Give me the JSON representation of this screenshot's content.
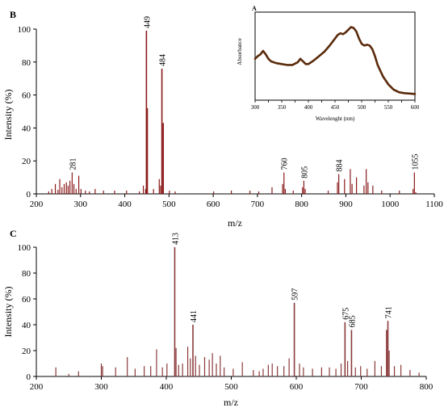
{
  "figure": {
    "background": "#ffffff"
  },
  "chart_data": [
    {
      "panel_label": "B",
      "type": "bar",
      "xlabel": "m/z",
      "ylabel": "Intensity (%)",
      "xlim": [
        200,
        1100
      ],
      "ylim": [
        0,
        100
      ],
      "x_ticks": [
        200,
        300,
        400,
        500,
        600,
        700,
        800,
        900,
        1000,
        1100
      ],
      "y_ticks": [
        0,
        20,
        40,
        60,
        80,
        100
      ],
      "color": "#8b1a1a",
      "x": [
        228,
        235,
        243,
        249,
        253,
        258,
        263,
        268,
        272,
        276,
        281,
        285,
        290,
        296,
        301,
        311,
        320,
        333,
        352,
        377,
        404,
        433,
        442,
        447,
        449,
        451,
        465,
        478,
        481,
        484,
        487,
        501,
        514,
        601,
        641,
        683,
        703,
        733,
        757,
        760,
        763,
        781,
        802,
        805,
        808,
        860,
        881,
        884,
        897,
        910,
        914,
        924,
        941,
        946,
        950,
        961,
        981,
        1021,
        1052,
        1055,
        1058
      ],
      "values": [
        1.5,
        3,
        6,
        2.5,
        9,
        4,
        6,
        7,
        5,
        8,
        13,
        6,
        3,
        11,
        3,
        2,
        1.5,
        3,
        2,
        2,
        2,
        1.5,
        5,
        3,
        99,
        52,
        3,
        9,
        5,
        76,
        43,
        2,
        1.5,
        1.5,
        2,
        2,
        1.5,
        4,
        6,
        13,
        3,
        2,
        4,
        8,
        3,
        2,
        7,
        12,
        9,
        15,
        6,
        10,
        5,
        15,
        7,
        5,
        2,
        2,
        3,
        13,
        1
      ],
      "labeled_peaks": [
        {
          "x": 449,
          "y": 99,
          "text": "449"
        },
        {
          "x": 484,
          "y": 76,
          "text": "484"
        },
        {
          "x": 281,
          "y": 13,
          "text": "281"
        },
        {
          "x": 760,
          "y": 13,
          "text": "760"
        },
        {
          "x": 805,
          "y": 8,
          "text": "805"
        },
        {
          "x": 884,
          "y": 12,
          "text": "884"
        },
        {
          "x": 1055,
          "y": 13,
          "text": "1055"
        }
      ]
    },
    {
      "panel_label": "A",
      "type": "line",
      "xlabel": "Wavelenght (nm)",
      "ylabel": "Absorbance",
      "xlim": [
        300,
        600
      ],
      "ylim": [
        0,
        1
      ],
      "x_ticks": [
        300,
        325,
        350,
        375,
        400,
        425,
        450,
        475,
        500,
        525,
        550,
        575,
        600
      ],
      "color": "#5a2a0a",
      "x": [
        300,
        305,
        310,
        315,
        320,
        325,
        330,
        340,
        350,
        360,
        370,
        380,
        385,
        390,
        395,
        400,
        410,
        420,
        430,
        440,
        450,
        455,
        460,
        465,
        470,
        475,
        480,
        485,
        490,
        495,
        500,
        505,
        510,
        515,
        520,
        525,
        530,
        540,
        550,
        560,
        570,
        580,
        590,
        600
      ],
      "y": [
        0.47,
        0.5,
        0.52,
        0.56,
        0.52,
        0.47,
        0.44,
        0.42,
        0.41,
        0.4,
        0.4,
        0.43,
        0.47,
        0.44,
        0.41,
        0.41,
        0.45,
        0.5,
        0.55,
        0.62,
        0.7,
        0.74,
        0.76,
        0.75,
        0.77,
        0.8,
        0.83,
        0.82,
        0.78,
        0.7,
        0.64,
        0.62,
        0.63,
        0.62,
        0.58,
        0.5,
        0.4,
        0.27,
        0.18,
        0.12,
        0.09,
        0.08,
        0.075,
        0.07
      ]
    },
    {
      "panel_label": "C",
      "type": "bar",
      "xlabel": "m/z",
      "ylabel": "Intensity (%)",
      "xlim": [
        200,
        800
      ],
      "ylim": [
        0,
        100
      ],
      "x_ticks": [
        200,
        300,
        400,
        500,
        600,
        700,
        800
      ],
      "y_ticks": [
        0,
        20,
        40,
        60,
        80,
        100
      ],
      "color": "#8b3a3a",
      "x": [
        230,
        250,
        265,
        300,
        302,
        322,
        340,
        352,
        366,
        376,
        385,
        394,
        401,
        413,
        415,
        419,
        425,
        433,
        437,
        441,
        445,
        451,
        459,
        466,
        471,
        477,
        483,
        489,
        503,
        517,
        534,
        543,
        549,
        557,
        563,
        571,
        581,
        589,
        597,
        605,
        611,
        625,
        639,
        651,
        661,
        669,
        675,
        679,
        685,
        691,
        699,
        709,
        721,
        731,
        739,
        741,
        743,
        751,
        761,
        775,
        789
      ],
      "values": [
        7,
        2,
        4,
        10,
        8,
        7,
        15,
        6,
        8,
        8,
        21,
        7,
        10,
        100,
        22,
        9,
        10,
        23,
        14,
        40,
        16,
        9,
        15,
        13,
        18,
        10,
        16,
        7,
        6,
        11,
        5,
        4,
        6,
        9,
        10,
        8,
        8,
        14,
        57,
        10,
        7,
        6,
        7,
        7,
        6,
        10,
        42,
        12,
        36,
        7,
        8,
        6,
        12,
        8,
        36,
        43,
        20,
        8,
        9,
        5,
        3
      ],
      "labeled_peaks": [
        {
          "x": 413,
          "y": 100,
          "text": "413"
        },
        {
          "x": 441,
          "y": 40,
          "text": "441"
        },
        {
          "x": 597,
          "y": 57,
          "text": "597"
        },
        {
          "x": 675,
          "y": 42,
          "text": "675"
        },
        {
          "x": 685,
          "y": 36,
          "text": "685"
        },
        {
          "x": 741,
          "y": 43,
          "text": "741"
        }
      ]
    }
  ]
}
